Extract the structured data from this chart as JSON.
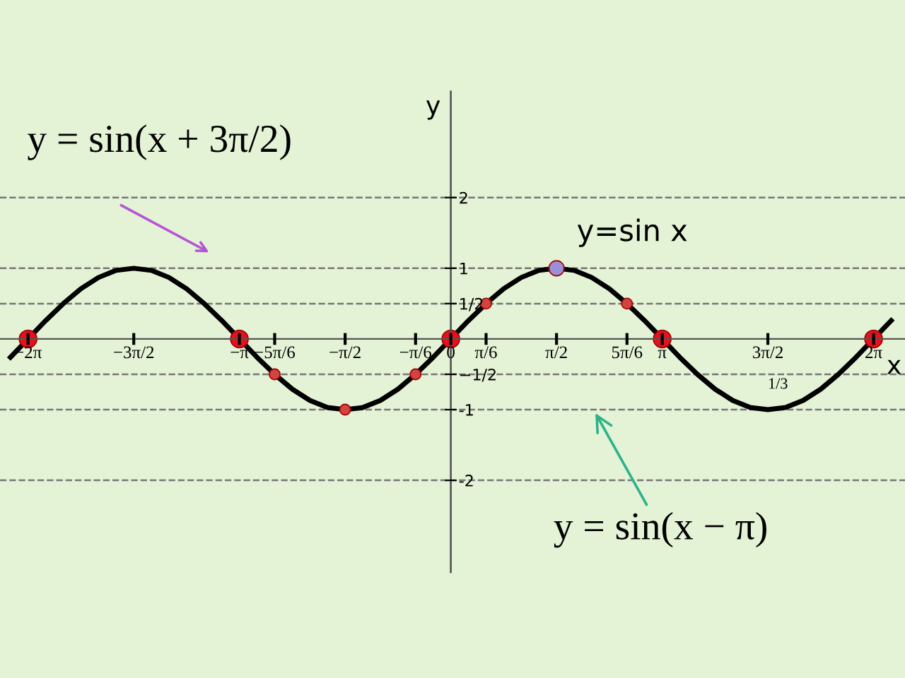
{
  "chart_data": {
    "type": "line",
    "xlabel": "x",
    "ylabel": "y",
    "xlim": [
      -6.7,
      6.75
    ],
    "ylim": [
      -3.3,
      3.5
    ],
    "xticks": [
      {
        "value": -6.283,
        "label": "−2π"
      },
      {
        "value": -4.712,
        "label": "−3π/2"
      },
      {
        "value": -3.142,
        "label": "−π"
      },
      {
        "value": -2.618,
        "label": "−5π/6"
      },
      {
        "value": -1.571,
        "label": "−π/2"
      },
      {
        "value": -0.524,
        "label": "−π/6"
      },
      0,
      {
        "value": 0.524,
        "label": "π/6"
      },
      {
        "value": 1.571,
        "label": "π/2"
      },
      {
        "value": 2.618,
        "label": "5π/6"
      },
      {
        "value": 3.142,
        "label": "π"
      },
      {
        "value": 4.712,
        "label": "3π/2"
      },
      {
        "value": 6.283,
        "label": "2π"
      }
    ],
    "yticks": [
      -2,
      -1,
      {
        "value": -0.5,
        "label": "−1/2"
      },
      {
        "value": 0.5,
        "label": "1/2"
      },
      1,
      2
    ],
    "grid": false,
    "legend": false,
    "series": [
      {
        "color": "#000000",
        "line_style": "solid",
        "marker": "none",
        "x": [
          -6.545,
          -6.283,
          -6.021,
          -5.76,
          -5.498,
          -5.236,
          -4.974,
          -4.712,
          -4.451,
          -4.189,
          -3.927,
          -3.665,
          -3.403,
          -3.142,
          -2.88,
          -2.618,
          -2.356,
          -2.094,
          -1.833,
          -1.571,
          -1.309,
          -1.047,
          -0.785,
          -0.524,
          -0.262,
          0,
          0.262,
          0.524,
          0.785,
          1.047,
          1.309,
          1.571,
          1.833,
          2.094,
          2.356,
          2.618,
          2.88,
          3.142,
          3.403,
          3.665,
          3.927,
          4.189,
          4.451,
          4.712,
          4.974,
          5.236,
          5.498,
          5.76,
          6.021,
          6.283,
          6.545
        ],
        "values": [
          -0.26,
          0,
          0.26,
          0.5,
          0.71,
          0.87,
          0.97,
          1,
          0.97,
          0.87,
          0.71,
          0.5,
          0.26,
          0,
          -0.26,
          -0.5,
          -0.71,
          -0.87,
          -0.97,
          -1,
          -0.97,
          -0.87,
          -0.71,
          -0.5,
          -0.26,
          0,
          0.26,
          0.5,
          0.71,
          0.87,
          0.97,
          1,
          0.97,
          0.87,
          0.71,
          0.5,
          0.26,
          0,
          -0.26,
          -0.5,
          -0.71,
          -0.87,
          -0.97,
          -1,
          -0.97,
          -0.87,
          -0.71,
          -0.5,
          -0.26,
          0,
          0.26
        ]
      },
      {
        "type": "scatter",
        "color": "#e3121b",
        "marker": "circle",
        "x": [
          -6.283,
          -3.142,
          0,
          3.142,
          6.283
        ],
        "values": [
          0,
          0,
          0,
          0,
          0
        ]
      },
      {
        "type": "scatter",
        "color": "#d0453f",
        "marker": "circle",
        "x": [
          -2.618,
          -1.571,
          -0.524,
          0.524,
          2.618
        ],
        "values": [
          -0.5,
          -1,
          -0.5,
          0.5,
          0.5
        ]
      },
      {
        "type": "scatter",
        "color": "#9b8fd8",
        "marker": "circle",
        "x": [
          1.571
        ],
        "values": [
          1
        ]
      }
    ],
    "ref_lines": [
      {
        "axis": "y",
        "value": 2,
        "line_style": "dashed",
        "color": "#777777"
      },
      {
        "axis": "y",
        "value": 1,
        "line_style": "dashed",
        "color": "#777777"
      },
      {
        "axis": "y",
        "value": 0.5,
        "line_style": "dashed",
        "color": "#777777"
      },
      {
        "axis": "y",
        "value": -0.5,
        "line_style": "dashed",
        "color": "#777777"
      },
      {
        "axis": "y",
        "value": -1,
        "line_style": "dashed",
        "color": "#777777"
      },
      {
        "axis": "y",
        "value": -2,
        "line_style": "dashed",
        "color": "#777777"
      }
    ],
    "annotations": [
      "y = sin(x + 3π/2)",
      {
        "text": "y=sin x",
        "x": 1.571,
        "y": 1
      },
      {
        "text": "y = sin(x − π)",
        "x": 2.12,
        "y": -1.0
      },
      {
        "text": "1/3",
        "x": 4.712,
        "y": -1
      }
    ]
  }
}
